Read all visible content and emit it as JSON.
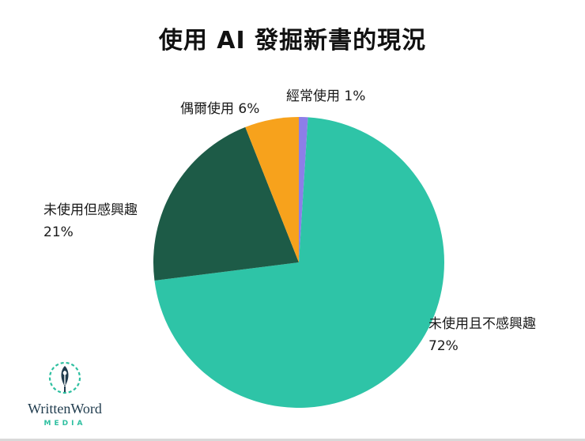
{
  "title": "使用 AI 發掘新書的現況",
  "chart_data": {
    "type": "pie",
    "title": "使用 AI 發掘新書的現況",
    "start_angle_deg": 0,
    "direction": "clockwise",
    "legend": "none",
    "labels_outside": true,
    "slices": [
      {
        "label": "經常使用",
        "value": 1,
        "color": "#8d7ee8",
        "display": "經常使用 1%"
      },
      {
        "label": "未使用且不感興趣",
        "value": 72,
        "color": "#2ec4a7",
        "display": "未使用且不感興趣 72%"
      },
      {
        "label": "未使用但感興趣",
        "value": 21,
        "color": "#1d5b47",
        "display": "未使用但感興趣 21%"
      },
      {
        "label": "偶爾使用",
        "value": 6,
        "color": "#f7a21c",
        "display": "偶爾使用 6%"
      }
    ]
  },
  "labels": {
    "often": "經常使用 1%",
    "occasional": "偶爾使用 6%",
    "interested_line1": "未使用但感興趣",
    "interested_line2": "21%",
    "not_interested_line1": "未使用且不感興趣",
    "not_interested_line2": "72%"
  },
  "logo": {
    "brand": "WrittenWord",
    "tagline": "MEDIA"
  },
  "colors": {
    "teal": "#2ec4a7",
    "dark_green": "#1d5b47",
    "orange": "#f7a21c",
    "purple": "#8d7ee8",
    "logo_teal": "#2ebfa0",
    "logo_text": "#1f3b4d"
  }
}
